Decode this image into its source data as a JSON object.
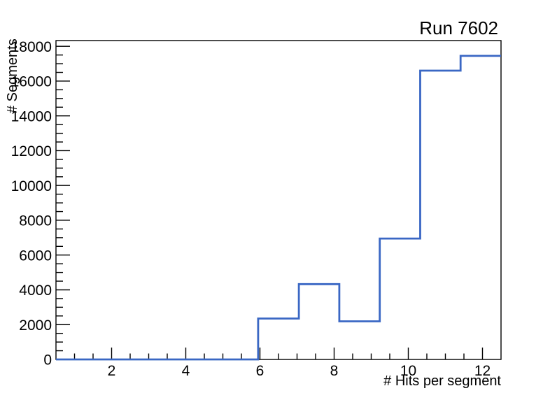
{
  "window": {
    "background": "#ffffff"
  },
  "chart_data": {
    "type": "line",
    "style": "histogram-step",
    "title": "Run 7602",
    "xlabel": "# Hits per segment",
    "ylabel": "# Segments",
    "xlim": [
      0.5,
      12.5
    ],
    "ylim": [
      0,
      18330
    ],
    "bin_edges": [
      0.5,
      1.59,
      2.68,
      3.77,
      4.86,
      5.95,
      7.05,
      8.14,
      9.23,
      10.32,
      11.41,
      12.5
    ],
    "counts": [
      0,
      0,
      0,
      0,
      0,
      2350,
      4330,
      2190,
      6950,
      16600,
      17450
    ],
    "x_major_ticks": [
      2,
      4,
      6,
      8,
      10,
      12
    ],
    "x_minor_step": 0.5,
    "y_major_ticks": [
      0,
      2000,
      4000,
      6000,
      8000,
      10000,
      12000,
      14000,
      16000,
      18000
    ],
    "y_minor_step": 500,
    "grid": false,
    "legend": null,
    "line_color": "#3a67c4",
    "axis_color": "#000000",
    "text_color": "#000000"
  }
}
